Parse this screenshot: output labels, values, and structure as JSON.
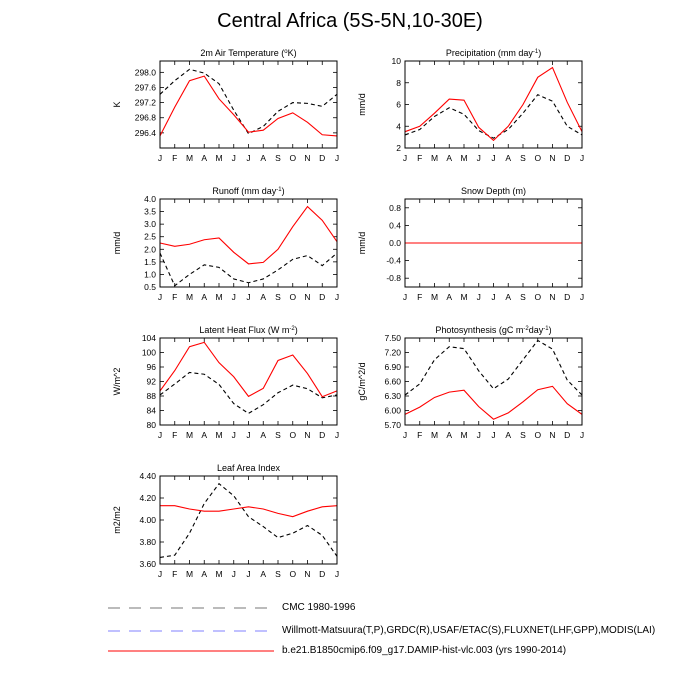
{
  "title": "Central Africa (5S-5N,10-30E)",
  "months": [
    "J",
    "F",
    "M",
    "A",
    "M",
    "J",
    "J",
    "A",
    "S",
    "O",
    "N",
    "D",
    "J"
  ],
  "colors": {
    "cmc": "#000000",
    "obs": "#0000ff",
    "model": "#ff0000"
  },
  "legend": {
    "cmc": "CMC 1980-1996",
    "obs": "Willmott-Matsuura(T,P),GRDC(R),USAF/ETAC(S),FLUXNET(LHF,GPP),MODIS(LAI)",
    "model": "b.e21.B1850cmip6.f09_g17.DAMIP-hist-vlc.003 (yrs 1990-2014)"
  },
  "chart_data": [
    {
      "type": "line",
      "title_main": "2m Air Temperature (",
      "title_sup": "o",
      "title_tail": "K)",
      "ylabel": "K",
      "ylim": [
        296.0,
        298.3
      ],
      "yticks": [
        "296.4",
        "296.8",
        "297.2",
        "297.6",
        "298.0"
      ],
      "ytick_values": [
        296.4,
        296.8,
        297.2,
        297.6,
        298.0
      ],
      "series": [
        {
          "key": "obs",
          "dash": true,
          "values": [
            297.42,
            297.78,
            298.08,
            297.98,
            297.7,
            297.0,
            296.38,
            296.57,
            296.97,
            297.2,
            297.18,
            297.1,
            297.42
          ]
        },
        {
          "key": "model",
          "dash": false,
          "values": [
            296.32,
            297.08,
            297.78,
            297.9,
            297.3,
            296.88,
            296.42,
            296.47,
            296.78,
            296.93,
            296.68,
            296.35,
            296.32
          ]
        }
      ]
    },
    {
      "type": "line",
      "title_main": "Precipitation (mm day",
      "title_sup": "-1",
      "title_tail": ")",
      "ylabel": "mm/d",
      "ylim": [
        2,
        10
      ],
      "yticks": [
        "2",
        "4",
        "6",
        "8",
        "10"
      ],
      "ytick_values": [
        2,
        4,
        6,
        8,
        10
      ],
      "series": [
        {
          "key": "obs",
          "dash": true,
          "values": [
            3.2,
            3.7,
            4.9,
            5.7,
            5.1,
            3.6,
            2.9,
            3.7,
            5.2,
            6.9,
            6.3,
            4.0,
            3.2
          ]
        },
        {
          "key": "model",
          "dash": false,
          "values": [
            3.5,
            4.0,
            5.2,
            6.5,
            6.4,
            3.9,
            2.7,
            4.0,
            6.0,
            8.5,
            9.4,
            6.2,
            3.5
          ]
        }
      ]
    },
    {
      "type": "line",
      "title_main": "Runoff (mm day",
      "title_sup": "-1",
      "title_tail": ")",
      "ylabel": "mm/d",
      "ylim": [
        0.5,
        4.0
      ],
      "yticks": [
        "0.5",
        "1.0",
        "1.5",
        "2.0",
        "2.5",
        "3.0",
        "3.5",
        "4.0"
      ],
      "ytick_values": [
        0.5,
        1.0,
        1.5,
        2.0,
        2.5,
        3.0,
        3.5,
        4.0
      ],
      "series": [
        {
          "key": "obs",
          "dash": true,
          "values": [
            1.85,
            0.55,
            1.0,
            1.38,
            1.28,
            0.82,
            0.67,
            0.82,
            1.18,
            1.6,
            1.75,
            1.35,
            1.85
          ]
        },
        {
          "key": "model",
          "dash": false,
          "values": [
            2.25,
            2.12,
            2.2,
            2.38,
            2.45,
            1.88,
            1.42,
            1.48,
            2.0,
            2.9,
            3.7,
            3.15,
            2.3
          ]
        }
      ]
    },
    {
      "type": "line",
      "title_main": "Snow Depth (m)",
      "title_sup": "",
      "title_tail": "",
      "ylabel": "mm/d",
      "ylim": [
        -1.0,
        1.0
      ],
      "yticks": [
        "-0.8",
        "-0.4",
        "0.0",
        "0.4",
        "0.8"
      ],
      "ytick_values": [
        -0.8,
        -0.4,
        0.0,
        0.4,
        0.8
      ],
      "series": [
        {
          "key": "obs",
          "dash": true,
          "values": [
            0,
            0,
            0,
            0,
            0,
            0,
            0,
            0,
            0,
            0,
            0,
            0,
            0
          ]
        },
        {
          "key": "model",
          "dash": false,
          "values": [
            0,
            0,
            0,
            0,
            0,
            0,
            0,
            0,
            0,
            0,
            0,
            0,
            0
          ]
        }
      ]
    },
    {
      "type": "line",
      "title_main": "Latent Heat Flux (W m",
      "title_sup": "-2",
      "title_tail": ")",
      "ylabel": "W/m^2",
      "ylim": [
        80,
        104
      ],
      "yticks": [
        "80",
        "84",
        "88",
        "92",
        "96",
        "100",
        "104"
      ],
      "ytick_values": [
        80,
        84,
        88,
        92,
        96,
        100,
        104
      ],
      "series": [
        {
          "key": "obs",
          "dash": true,
          "values": [
            88.3,
            91.3,
            94.5,
            94.0,
            91.2,
            85.9,
            83.2,
            85.6,
            88.9,
            91.0,
            90.0,
            87.5,
            88.3
          ]
        },
        {
          "key": "model",
          "dash": false,
          "values": [
            89.4,
            95.0,
            101.6,
            102.8,
            97.2,
            93.3,
            87.9,
            90.1,
            97.8,
            99.3,
            94.2,
            87.8,
            89.4
          ]
        }
      ]
    },
    {
      "type": "line",
      "title_main": "Photosynthesis (gC m",
      "title_sup": "-2",
      "title_tail": "day",
      "title_sup2": "-1",
      "title_tail2": ")",
      "ylabel": "gC/m^2/d",
      "ylim": [
        5.7,
        7.5
      ],
      "yticks": [
        "5.70",
        "6.00",
        "6.30",
        "6.60",
        "6.90",
        "7.20",
        "7.50"
      ],
      "ytick_values": [
        5.7,
        6.0,
        6.3,
        6.6,
        6.9,
        7.2,
        7.5
      ],
      "series": [
        {
          "key": "obs",
          "dash": true,
          "values": [
            6.32,
            6.55,
            7.05,
            7.32,
            7.28,
            6.82,
            6.45,
            6.65,
            7.05,
            7.45,
            7.27,
            6.63,
            6.32
          ]
        },
        {
          "key": "model",
          "dash": false,
          "values": [
            5.92,
            6.07,
            6.27,
            6.38,
            6.42,
            6.08,
            5.82,
            5.95,
            6.18,
            6.43,
            6.5,
            6.14,
            5.92
          ]
        }
      ]
    },
    {
      "type": "line",
      "title_main": "Leaf Area Index",
      "title_sup": "",
      "title_tail": "",
      "ylabel": "m2/m2",
      "ylim": [
        3.6,
        4.4
      ],
      "yticks": [
        "3.60",
        "3.80",
        "4.00",
        "4.20",
        "4.40"
      ],
      "ytick_values": [
        3.6,
        3.8,
        4.0,
        4.2,
        4.4
      ],
      "series": [
        {
          "key": "obs",
          "dash": true,
          "values": [
            3.66,
            3.68,
            3.88,
            4.15,
            4.33,
            4.22,
            4.03,
            3.94,
            3.84,
            3.88,
            3.95,
            3.86,
            3.67
          ]
        },
        {
          "key": "model",
          "dash": false,
          "values": [
            4.13,
            4.13,
            4.1,
            4.08,
            4.08,
            4.1,
            4.12,
            4.1,
            4.06,
            4.03,
            4.08,
            4.12,
            4.13
          ]
        }
      ]
    }
  ]
}
